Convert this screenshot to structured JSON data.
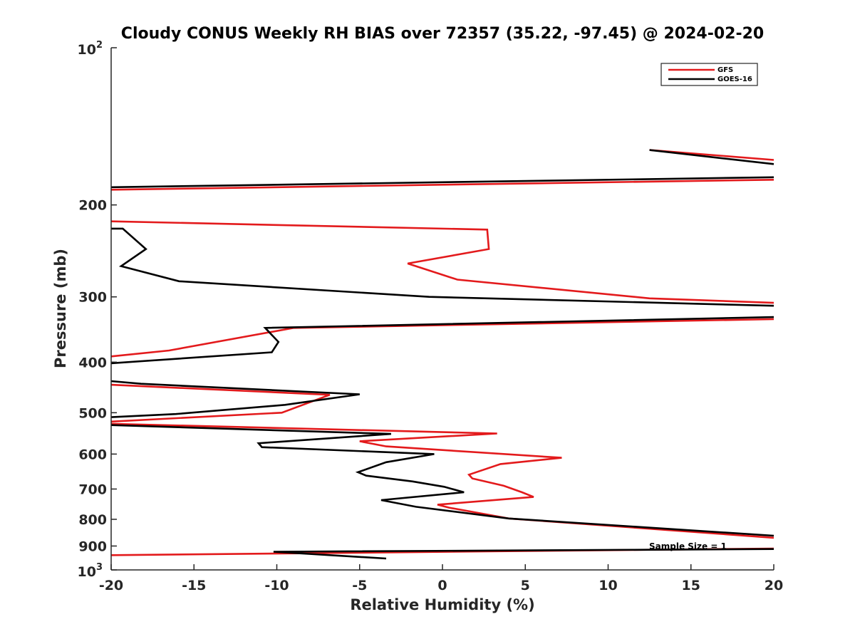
{
  "chart_data": {
    "type": "line",
    "title": "Cloudy CONUS Weekly RH BIAS over 72357 (35.22, -97.45) @ 2024-02-20",
    "xlabel": "Relative Humidity (%)",
    "ylabel": "Pressure (mb)",
    "xlim": [
      -20,
      20
    ],
    "ylim": [
      100,
      1000
    ],
    "y_scale": "log",
    "y_reversed": true,
    "grid": false,
    "legend_position": "top-right",
    "x_ticks": [
      "-20",
      "-15",
      "-10",
      "-5",
      "0",
      "5",
      "10",
      "15",
      "20"
    ],
    "y_ticks": [
      {
        "value": 100,
        "base": "10",
        "exp": "2"
      },
      {
        "value": 200,
        "label": "200"
      },
      {
        "value": 300,
        "label": "300"
      },
      {
        "value": 400,
        "label": "400"
      },
      {
        "value": 500,
        "label": "500"
      },
      {
        "value": 600,
        "label": "600"
      },
      {
        "value": 700,
        "label": "700"
      },
      {
        "value": 800,
        "label": "800"
      },
      {
        "value": 900,
        "label": "900"
      },
      {
        "value": 1000,
        "base": "10",
        "exp": "3"
      }
    ],
    "series": [
      {
        "name": "GFS",
        "color": "#e31a1c",
        "segments": [
          [
            [
              20,
              164
            ],
            [
              12.5,
              157
            ]
          ],
          [
            [
              20,
              179
            ],
            [
              -20,
              187
            ]
          ],
          [
            [
              -20,
              215
            ],
            [
              2.7,
              223
            ],
            [
              2.8,
              243
            ],
            [
              -2.1,
              259
            ],
            [
              0.9,
              278
            ],
            [
              12.5,
              302
            ],
            [
              20,
              308
            ]
          ],
          [
            [
              20,
              331
            ],
            [
              -9,
              344
            ],
            [
              -16.5,
              380
            ],
            [
              -20,
              390
            ]
          ],
          [
            [
              -20,
              442
            ],
            [
              -6.8,
              462
            ],
            [
              -9.7,
              500
            ],
            [
              -20,
              520
            ]
          ],
          [
            [
              -20,
              525
            ],
            [
              3.3,
              548
            ],
            [
              -5,
              567
            ],
            [
              -3.4,
              580
            ],
            [
              7.2,
              610
            ],
            [
              3.5,
              627
            ],
            [
              1.6,
              657
            ],
            [
              1.8,
              668
            ],
            [
              3.7,
              690
            ],
            [
              4.8,
              710
            ],
            [
              5.5,
              725
            ],
            [
              -0.3,
              750
            ],
            [
              0.4,
              760
            ],
            [
              4,
              797
            ],
            [
              20,
              868
            ]
          ],
          [
            [
              20,
              910
            ],
            [
              -20,
              937
            ]
          ]
        ]
      },
      {
        "name": "GOES-16",
        "color": "#000000",
        "segments": [
          [
            [
              12.5,
              157
            ],
            [
              20,
              167
            ]
          ],
          [
            [
              20,
              177
            ],
            [
              -20,
              185
            ]
          ],
          [
            [
              -20,
              222
            ],
            [
              -19.3,
              222
            ],
            [
              -17.9,
              243
            ],
            [
              -19.4,
              262
            ],
            [
              -15.9,
              280
            ],
            [
              -0.8,
              300
            ],
            [
              20,
              312
            ]
          ],
          [
            [
              20,
              328
            ],
            [
              -10.7,
              344
            ],
            [
              -9.9,
              366
            ],
            [
              -10.3,
              383
            ],
            [
              -20,
              402
            ]
          ],
          [
            [
              -20,
              435
            ],
            [
              -18.2,
              440
            ],
            [
              -5,
              461
            ],
            [
              -9.5,
              483
            ],
            [
              -16.1,
              503
            ],
            [
              -20,
              510
            ]
          ],
          [
            [
              -20,
              528
            ],
            [
              -3.1,
              549
            ],
            [
              -11.1,
              572
            ],
            [
              -10.9,
              582
            ],
            [
              -0.5,
              600
            ],
            [
              -3.4,
              622
            ],
            [
              -5.1,
              650
            ],
            [
              -4.6,
              660
            ],
            [
              -1.8,
              677
            ],
            [
              0.1,
              693
            ],
            [
              1.3,
              710
            ],
            [
              -3.7,
              735
            ],
            [
              -1.6,
              757
            ],
            [
              4.0,
              797
            ],
            [
              20,
              860
            ]
          ],
          [
            [
              20,
              912
            ],
            [
              -10.2,
              923
            ],
            [
              -3.4,
              951
            ]
          ]
        ]
      }
    ],
    "annotation": "Sample Size = 1"
  }
}
